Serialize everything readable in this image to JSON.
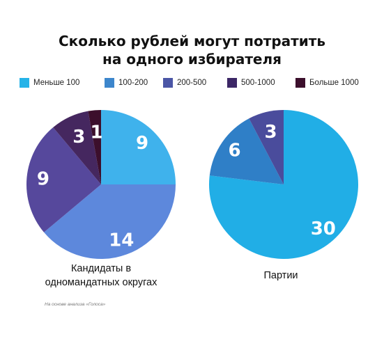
{
  "title_line1": "Сколько рублей могут потратить",
  "title_line2": "на одного избирателя",
  "legend": [
    {
      "label": "Меньше 100",
      "color": "#26b3e8"
    },
    {
      "label": "100-200",
      "color": "#3d86cc"
    },
    {
      "label": "200-500",
      "color": "#4b56a6"
    },
    {
      "label": "500-1000",
      "color": "#3c2766"
    },
    {
      "label": "Больше 1000",
      "color": "#3c0f2c"
    }
  ],
  "chart_data": [
    {
      "type": "pie",
      "caption_line1": "Кандидаты в",
      "caption_line2": "одномандатных округах",
      "slices": [
        {
          "category": "Меньше 100",
          "value": 9,
          "color": "#3fb2ec"
        },
        {
          "category": "100-200",
          "value": 14,
          "color": "#5d88dc"
        },
        {
          "category": "200-500",
          "value": 9,
          "color": "#56489c"
        },
        {
          "category": "500-1000",
          "value": 3,
          "color": "#45275f"
        },
        {
          "category": "Больше 1000",
          "value": 1,
          "color": "#3c0f2c"
        }
      ]
    },
    {
      "type": "pie",
      "caption_line1": "Партии",
      "caption_line2": "",
      "slices": [
        {
          "category": "Меньше 100",
          "value": 30,
          "color": "#21aee6"
        },
        {
          "category": "100-200",
          "value": 6,
          "color": "#2f7fc7"
        },
        {
          "category": "200-500",
          "value": 3,
          "color": "#4a4c9c"
        }
      ]
    }
  ],
  "source": "На основе анализа «Голоса»"
}
